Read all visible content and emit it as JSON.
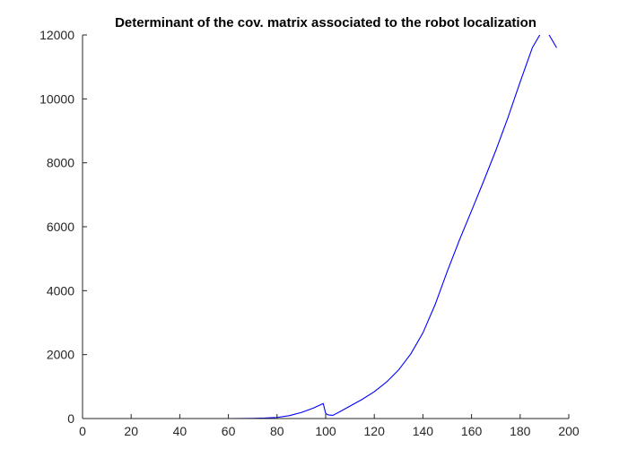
{
  "colors": {
    "background": "#ffffff",
    "axis": "#262626",
    "series": "#0000ff"
  },
  "chart_data": {
    "type": "line",
    "title": "Determinant of the cov. matrix associated to the robot localization",
    "xlabel": "",
    "ylabel": "",
    "xlim": [
      0,
      200
    ],
    "ylim": [
      0,
      12000
    ],
    "xticks": [
      0,
      20,
      40,
      60,
      80,
      100,
      120,
      140,
      160,
      180,
      200
    ],
    "yticks": [
      0,
      2000,
      4000,
      6000,
      8000,
      10000,
      12000
    ],
    "xtick_labels": [
      "0",
      "20",
      "40",
      "60",
      "80",
      "100",
      "120",
      "140",
      "160",
      "180",
      "200"
    ],
    "ytick_labels": [
      "0",
      "2000",
      "4000",
      "6000",
      "8000",
      "10000",
      "12000"
    ],
    "grid": false,
    "legend": "none",
    "series": [
      {
        "color": "#0000ff",
        "x": [
          0,
          20,
          40,
          50,
          60,
          65,
          70,
          75,
          80,
          85,
          90,
          95,
          99,
          100,
          101,
          103,
          106,
          110,
          115,
          120,
          125,
          130,
          135,
          140,
          145,
          150,
          155,
          160,
          165,
          170,
          175,
          180,
          185,
          190,
          195
        ],
        "y": [
          0,
          0,
          0,
          0,
          0,
          2,
          5,
          15,
          35,
          90,
          190,
          330,
          470,
          160,
          115,
          100,
          220,
          390,
          600,
          840,
          1140,
          1520,
          2020,
          2680,
          3560,
          4600,
          5580,
          6500,
          7430,
          8390,
          9420,
          10530,
          11600,
          12250,
          11600
        ]
      }
    ]
  }
}
